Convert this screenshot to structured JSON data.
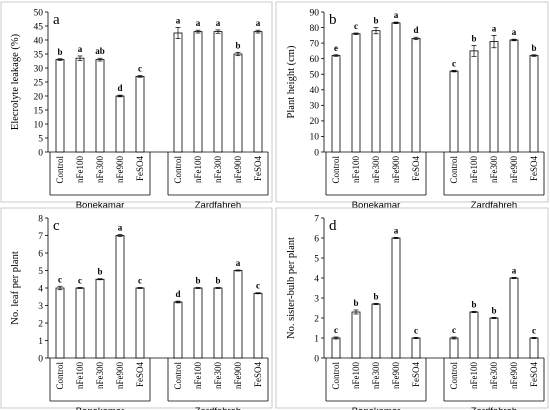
{
  "chart_data": [
    {
      "type": "bar",
      "panel_letter": "a",
      "ylabel": "Elecrolyte leakage (%)",
      "ylim": [
        0,
        50
      ],
      "yticks": [
        0,
        5,
        10,
        15,
        20,
        25,
        30,
        35,
        40,
        45,
        50
      ],
      "groups": [
        "Bonekamar",
        "Zardfahreh"
      ],
      "categories": [
        "Control",
        "nFe100",
        "nFe300",
        "nFe900",
        "FeSO4"
      ],
      "series": [
        {
          "group": "Bonekamar",
          "values": [
            33,
            33.5,
            33,
            20,
            27
          ],
          "errors": [
            0.3,
            0.8,
            0.5,
            0.3,
            0.3
          ],
          "letters": [
            "b",
            "a",
            "ab",
            "d",
            "c"
          ]
        },
        {
          "group": "Zardfahreh",
          "values": [
            42.5,
            43,
            43,
            35,
            43
          ],
          "errors": [
            2.0,
            0.5,
            0.6,
            0.6,
            0.5
          ],
          "letters": [
            "a",
            "a",
            "a",
            "b",
            "a"
          ]
        }
      ]
    },
    {
      "type": "bar",
      "panel_letter": "b",
      "ylabel": "Plant height (cm)",
      "ylim": [
        0,
        90
      ],
      "yticks": [
        0,
        10,
        20,
        30,
        40,
        50,
        60,
        70,
        80,
        90
      ],
      "groups": [
        "Bonekamar",
        "Zardfahreh"
      ],
      "categories": [
        "Control",
        "nFe100",
        "nFe300",
        "nFe900",
        "FeSO4"
      ],
      "series": [
        {
          "group": "Bonekamar",
          "values": [
            62,
            76,
            78,
            83,
            73
          ],
          "errors": [
            0.5,
            0.5,
            2.0,
            0.5,
            0.8
          ],
          "letters": [
            "e",
            "c",
            "b",
            "a",
            "d"
          ]
        },
        {
          "group": "Zardfahreh",
          "values": [
            52,
            65,
            71,
            72,
            62
          ],
          "errors": [
            0.5,
            3.5,
            4.0,
            0.5,
            0.5
          ],
          "letters": [
            "c",
            "b",
            "a",
            "a",
            "b"
          ]
        }
      ]
    },
    {
      "type": "bar",
      "panel_letter": "c",
      "ylabel": "No. leaf per plant",
      "ylim": [
        0,
        8
      ],
      "yticks": [
        0,
        1,
        2,
        3,
        4,
        5,
        6,
        7,
        8
      ],
      "groups": [
        "Bonekamar",
        "Zardfahreh"
      ],
      "categories": [
        "Control",
        "nFe100",
        "nFe300",
        "nFe900",
        "FeSO4"
      ],
      "series": [
        {
          "group": "Bonekamar",
          "values": [
            4,
            4,
            4.5,
            7,
            4
          ],
          "errors": [
            0.1,
            0.03,
            0.03,
            0.05,
            0.03
          ],
          "letters": [
            "c",
            "c",
            "b",
            "a",
            "c"
          ]
        },
        {
          "group": "Zardfahreh",
          "values": [
            3.2,
            4,
            4,
            5,
            3.7
          ],
          "errors": [
            0.05,
            0.03,
            0.03,
            0.03,
            0.03
          ],
          "letters": [
            "d",
            "b",
            "b",
            "a",
            "c"
          ]
        }
      ]
    },
    {
      "type": "bar",
      "panel_letter": "d",
      "ylabel": "No. sister-bulb per plant",
      "ylim": [
        0,
        7
      ],
      "yticks": [
        0,
        1,
        2,
        3,
        4,
        5,
        6,
        7
      ],
      "groups": [
        "Bonekamar",
        "Zardfahreh"
      ],
      "categories": [
        "Control",
        "nFe100",
        "nFe300",
        "nFe900",
        "FeSO4"
      ],
      "series": [
        {
          "group": "Bonekamar",
          "values": [
            1,
            2.3,
            2.7,
            6,
            1
          ],
          "errors": [
            0.05,
            0.1,
            0.03,
            0.03,
            0.03
          ],
          "letters": [
            "c",
            "b",
            "b",
            "a",
            "c"
          ]
        },
        {
          "group": "Zardfahreh",
          "values": [
            1,
            2.3,
            2,
            4,
            1
          ],
          "errors": [
            0.05,
            0.03,
            0.03,
            0.03,
            0.03
          ],
          "letters": [
            "c",
            "b",
            "b",
            "a",
            "c"
          ]
        }
      ]
    }
  ]
}
